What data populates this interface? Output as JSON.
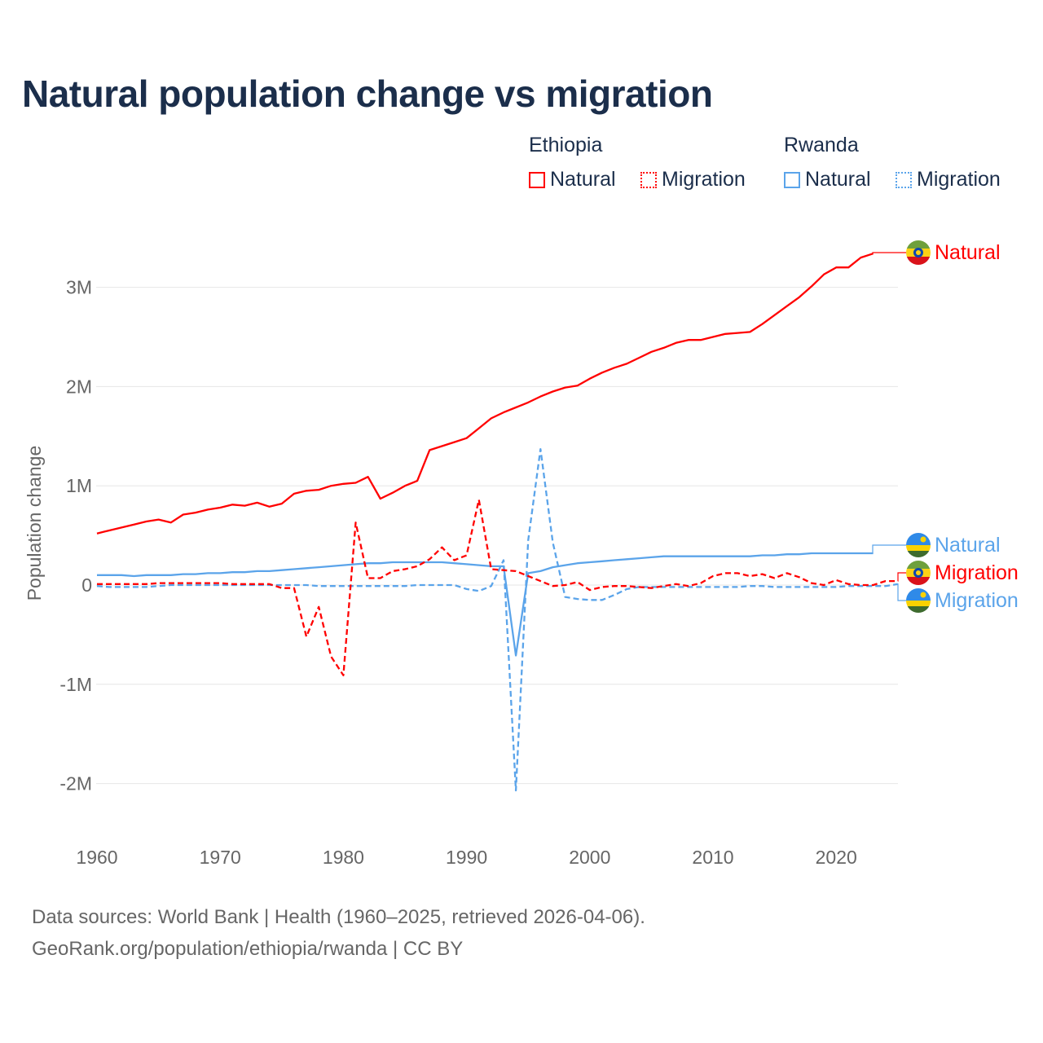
{
  "chart_data": {
    "type": "line",
    "title": "Natural population change vs migration",
    "ylabel": "Population change",
    "ylim": [
      -2.5,
      3.6
    ],
    "xlim": [
      1960,
      2025
    ],
    "yticks": [
      {
        "v": 3,
        "label": "3M"
      },
      {
        "v": 2,
        "label": "2M"
      },
      {
        "v": 1,
        "label": "1M"
      },
      {
        "v": 0,
        "label": "0"
      },
      {
        "v": -1,
        "label": "-1M"
      },
      {
        "v": -2,
        "label": "-2M"
      }
    ],
    "xticks": [
      "1960",
      "1970",
      "1980",
      "1990",
      "2000",
      "2010",
      "2020"
    ],
    "legend": {
      "groups": [
        {
          "country": "Ethiopia",
          "items": [
            "Natural",
            "Migration"
          ]
        },
        {
          "country": "Rwanda",
          "items": [
            "Natural",
            "Migration"
          ]
        }
      ]
    },
    "series": [
      {
        "name": "Natural",
        "country": "Ethiopia",
        "color": "#ff0000",
        "dash": false,
        "start": 1960,
        "values": [
          0.52,
          0.55,
          0.58,
          0.61,
          0.64,
          0.66,
          0.63,
          0.71,
          0.73,
          0.76,
          0.78,
          0.81,
          0.8,
          0.83,
          0.79,
          0.82,
          0.92,
          0.95,
          0.96,
          1.0,
          1.02,
          1.03,
          1.09,
          0.87,
          0.93,
          1.0,
          1.05,
          1.36,
          1.4,
          1.44,
          1.48,
          1.58,
          1.68,
          1.74,
          1.79,
          1.84,
          1.9,
          1.95,
          1.99,
          2.01,
          2.08,
          2.14,
          2.19,
          2.23,
          2.29,
          2.35,
          2.39,
          2.44,
          2.47,
          2.47,
          2.5,
          2.53,
          2.54,
          2.55,
          2.63,
          2.72,
          2.81,
          2.9,
          3.01,
          3.13,
          3.2,
          3.2,
          3.3,
          3.34
        ]
      },
      {
        "name": "Migration",
        "country": "Ethiopia",
        "color": "#ff0000",
        "dash": true,
        "start": 1960,
        "values": [
          0.01,
          0.01,
          0.01,
          0.01,
          0.01,
          0.02,
          0.02,
          0.02,
          0.02,
          0.02,
          0.02,
          0.01,
          0.01,
          0.01,
          0.01,
          -0.03,
          -0.03,
          -0.52,
          -0.22,
          -0.72,
          -0.91,
          0.63,
          0.07,
          0.07,
          0.14,
          0.16,
          0.19,
          0.26,
          0.38,
          0.25,
          0.3,
          0.86,
          0.16,
          0.15,
          0.14,
          0.09,
          0.04,
          -0.01,
          0.0,
          0.03,
          -0.05,
          -0.02,
          -0.01,
          -0.01,
          -0.02,
          -0.03,
          -0.01,
          0.01,
          -0.01,
          0.02,
          0.09,
          0.12,
          0.12,
          0.09,
          0.11,
          0.07,
          0.12,
          0.08,
          0.02,
          0.0,
          0.05,
          0.01,
          0.0,
          0.0,
          0.04,
          0.04
        ]
      },
      {
        "name": "Natural",
        "country": "Rwanda",
        "color": "#5ba4ea",
        "dash": false,
        "start": 1960,
        "values": [
          0.1,
          0.1,
          0.1,
          0.09,
          0.1,
          0.1,
          0.1,
          0.11,
          0.11,
          0.12,
          0.12,
          0.13,
          0.13,
          0.14,
          0.14,
          0.15,
          0.16,
          0.17,
          0.18,
          0.19,
          0.2,
          0.21,
          0.22,
          0.22,
          0.23,
          0.23,
          0.23,
          0.23,
          0.23,
          0.22,
          0.21,
          0.2,
          0.19,
          0.19,
          -0.71,
          0.12,
          0.14,
          0.18,
          0.2,
          0.22,
          0.23,
          0.24,
          0.25,
          0.26,
          0.27,
          0.28,
          0.29,
          0.29,
          0.29,
          0.29,
          0.29,
          0.29,
          0.29,
          0.29,
          0.3,
          0.3,
          0.31,
          0.31,
          0.32,
          0.32,
          0.32,
          0.32,
          0.32,
          0.32
        ]
      },
      {
        "name": "Migration",
        "country": "Rwanda",
        "color": "#5ba4ea",
        "dash": true,
        "start": 1960,
        "values": [
          -0.01,
          -0.02,
          -0.02,
          -0.02,
          -0.02,
          -0.01,
          0.0,
          0.0,
          0.0,
          0.0,
          0.0,
          0.0,
          0.0,
          0.0,
          0.0,
          0.0,
          0.0,
          0.0,
          -0.01,
          -0.01,
          -0.01,
          -0.01,
          -0.01,
          -0.01,
          -0.01,
          -0.01,
          0.0,
          0.0,
          0.0,
          0.0,
          -0.04,
          -0.06,
          -0.01,
          0.25,
          -2.07,
          0.45,
          1.37,
          0.43,
          -0.12,
          -0.14,
          -0.15,
          -0.15,
          -0.1,
          -0.04,
          -0.02,
          -0.02,
          -0.02,
          -0.02,
          -0.02,
          -0.02,
          -0.02,
          -0.02,
          -0.02,
          -0.01,
          -0.01,
          -0.02,
          -0.02,
          -0.02,
          -0.02,
          -0.02,
          -0.02,
          -0.01,
          -0.01,
          -0.01,
          -0.01,
          0.01
        ]
      }
    ],
    "end_labels": [
      "Natural",
      "Natural",
      "Migration",
      "Migration"
    ]
  },
  "footer": {
    "line1": "Data sources: World Bank | Health (1960–2025, retrieved 2026-04-06).",
    "line2": "GeoRank.org/population/ethiopia/rwanda | CC BY"
  }
}
